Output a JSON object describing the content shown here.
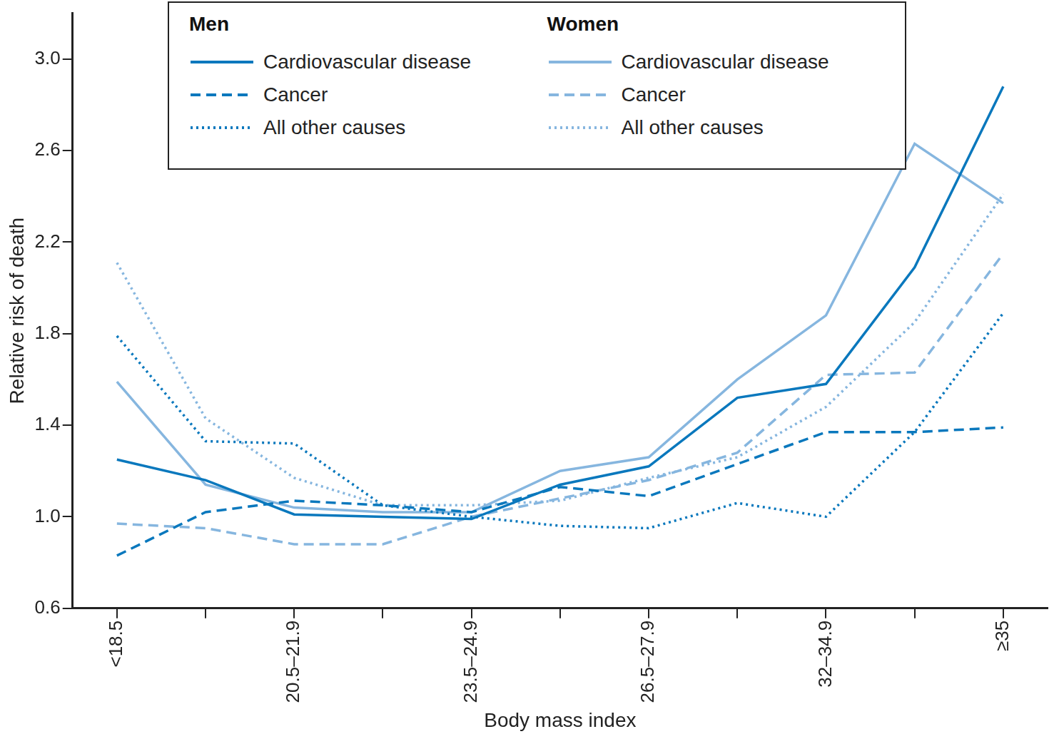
{
  "chart_data": {
    "type": "line",
    "x_label": "Body mass index",
    "y_label": "Relative risk of death",
    "categories": [
      "<18.5",
      null,
      "20.5–21.9",
      null,
      "23.5–24.9",
      null,
      "26.5–27.9",
      null,
      "32–34.9",
      null,
      "≥35"
    ],
    "ylim": [
      0.6,
      3.2
    ],
    "yticks": [
      0.6,
      {
        "value": 1,
        "label": "1.0"
      },
      1.4,
      1.8,
      2.2,
      2.6,
      {
        "value": 3,
        "label": "3.0"
      }
    ],
    "grid": false,
    "series": [
      {
        "group": "Men",
        "name": "Cardiovascular disease",
        "color": "#0a78bd",
        "line_style": "solid",
        "values": [
          1.25,
          1.16,
          1.01,
          1.0,
          0.99,
          1.14,
          1.22,
          1.52,
          1.58,
          2.09,
          2.88
        ]
      },
      {
        "group": "Men",
        "name": "Cancer",
        "color": "#0a78bd",
        "line_style": "dashed",
        "values": [
          0.83,
          1.02,
          1.07,
          1.05,
          1.02,
          1.13,
          1.09,
          1.23,
          1.37,
          1.37,
          1.39
        ]
      },
      {
        "group": "Men",
        "name": "All other causes",
        "color": "#0a78bd",
        "line_style": "dotted",
        "values": [
          1.79,
          1.33,
          1.32,
          1.05,
          1.0,
          0.96,
          0.95,
          1.06,
          1.0,
          1.37,
          1.89
        ]
      },
      {
        "group": "Women",
        "name": "Cardiovascular disease",
        "color": "#86b6df",
        "line_style": "solid",
        "values": [
          1.59,
          1.14,
          1.04,
          1.02,
          1.02,
          1.2,
          1.26,
          1.6,
          1.88,
          2.63,
          2.37
        ]
      },
      {
        "group": "Women",
        "name": "Cancer",
        "color": "#86b6df",
        "line_style": "dashed",
        "values": [
          0.97,
          0.95,
          0.88,
          0.88,
          1.0,
          1.08,
          1.16,
          1.28,
          1.62,
          1.63,
          2.15
        ]
      },
      {
        "group": "Women",
        "name": "All other causes",
        "color": "#86b6df",
        "line_style": "dotted",
        "values": [
          2.11,
          1.43,
          1.17,
          1.05,
          1.05,
          1.07,
          1.17,
          1.26,
          1.48,
          1.85,
          2.41
        ]
      }
    ]
  }
}
